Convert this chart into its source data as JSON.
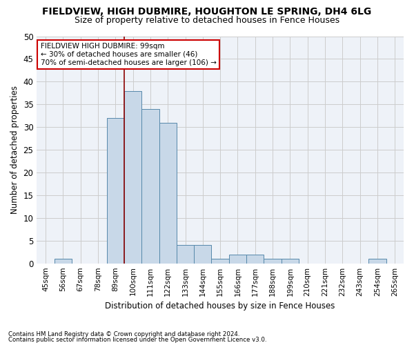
{
  "title": "FIELDVIEW, HIGH DUBMIRE, HOUGHTON LE SPRING, DH4 6LG",
  "subtitle": "Size of property relative to detached houses in Fence Houses",
  "xlabel": "Distribution of detached houses by size in Fence Houses",
  "ylabel": "Number of detached properties",
  "footnote1": "Contains HM Land Registry data © Crown copyright and database right 2024.",
  "footnote2": "Contains public sector information licensed under the Open Government Licence v3.0.",
  "annotation_title": "FIELDVIEW HIGH DUBMIRE: 99sqm",
  "annotation_line2": "← 30% of detached houses are smaller (46)",
  "annotation_line3": "70% of semi-detached houses are larger (106) →",
  "bar_labels": [
    "45sqm",
    "56sqm",
    "67sqm",
    "78sqm",
    "89sqm",
    "100sqm",
    "111sqm",
    "122sqm",
    "133sqm",
    "144sqm",
    "155sqm",
    "166sqm",
    "177sqm",
    "188sqm",
    "199sqm",
    "210sqm",
    "221sqm",
    "232sqm",
    "243sqm",
    "254sqm",
    "265sqm"
  ],
  "bar_values": [
    0,
    1,
    0,
    0,
    32,
    38,
    34,
    31,
    4,
    4,
    1,
    2,
    2,
    1,
    1,
    0,
    0,
    0,
    0,
    1,
    0
  ],
  "bar_color": "#c8d8e8",
  "bar_edge_color": "#5588aa",
  "vline_x": 4.5,
  "vline_color": "#8b0000",
  "annotation_box_color": "#ffffff",
  "annotation_box_edge": "#cc0000",
  "ylim": [
    0,
    50
  ],
  "yticks": [
    0,
    5,
    10,
    15,
    20,
    25,
    30,
    35,
    40,
    45,
    50
  ],
  "grid_color": "#cccccc",
  "bg_color": "#eef2f8",
  "title_fontsize": 10,
  "subtitle_fontsize": 9
}
